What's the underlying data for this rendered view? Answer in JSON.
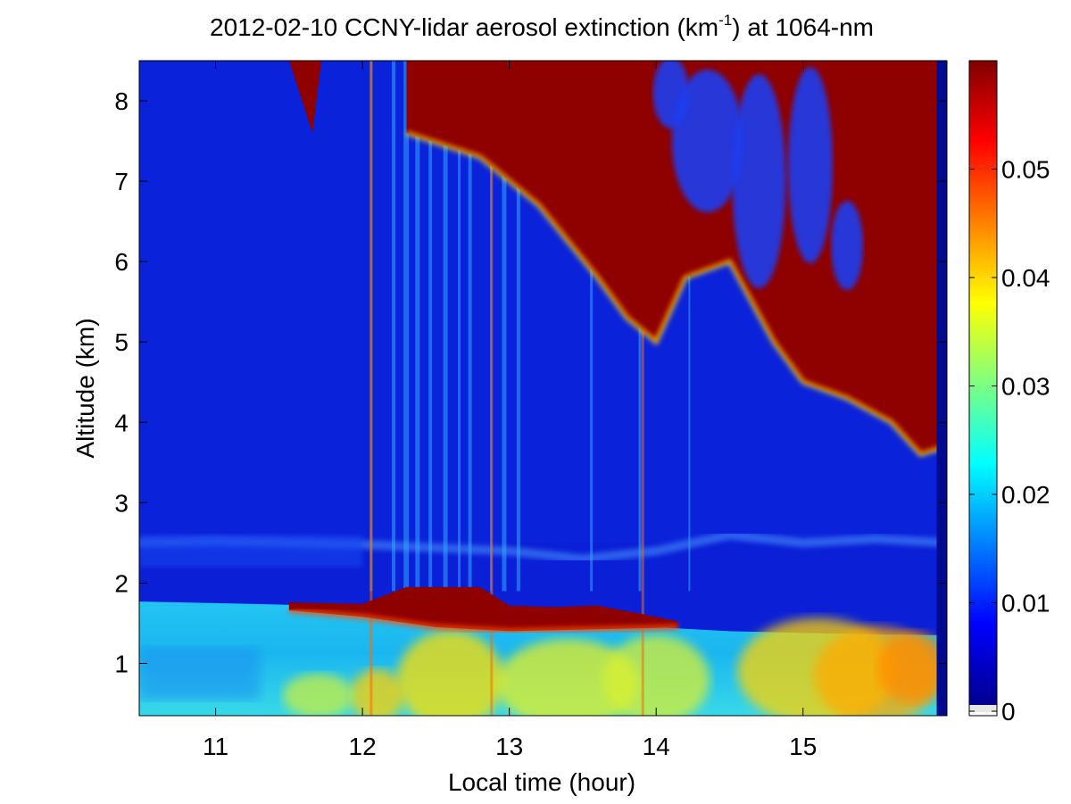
{
  "chart_data": {
    "type": "heatmap",
    "title_main": "2012-02-10 CCNY-lidar aerosol extinction (km",
    "title_sup": "-1",
    "title_tail": ") at 1064-nm",
    "xlabel": "Local time (hour)",
    "ylabel": "Altitude (km)",
    "xlim": [
      10.48,
      15.98
    ],
    "ylim": [
      0.35,
      8.5
    ],
    "x_ticks": [
      11,
      12,
      13,
      14,
      15
    ],
    "y_ticks": [
      1,
      2,
      3,
      4,
      5,
      6,
      7,
      8
    ],
    "colorbar": {
      "colormap": "jet",
      "clim": [
        0,
        0.06
      ],
      "ticks": [
        0,
        0.01,
        0.02,
        0.03,
        0.04,
        0.05
      ],
      "tick_labels": [
        "0",
        "0.01",
        "0.02",
        "0.03",
        "0.04",
        "0.05"
      ]
    },
    "features": {
      "boundary_layer_top_km": [
        [
          10.48,
          1.77
        ],
        [
          11.0,
          1.75
        ],
        [
          11.5,
          1.73
        ],
        [
          12.0,
          1.68
        ],
        [
          12.5,
          1.65
        ],
        [
          13.0,
          1.58
        ],
        [
          13.5,
          1.53
        ],
        [
          14.0,
          1.45
        ],
        [
          14.5,
          1.4
        ],
        [
          15.0,
          1.38
        ],
        [
          15.5,
          1.36
        ],
        [
          15.98,
          1.35
        ]
      ],
      "aerosol_layer_top_km": [
        [
          11.5,
          1.76
        ],
        [
          12.0,
          1.74
        ],
        [
          12.3,
          1.95
        ],
        [
          12.8,
          1.95
        ],
        [
          13.0,
          1.72
        ],
        [
          13.3,
          1.7
        ],
        [
          13.6,
          1.72
        ],
        [
          14.0,
          1.58
        ],
        [
          14.15,
          1.52
        ]
      ],
      "aerosol_layer_bottom_km": [
        [
          11.5,
          1.66
        ],
        [
          12.0,
          1.58
        ],
        [
          12.5,
          1.45
        ],
        [
          13.0,
          1.4
        ],
        [
          13.5,
          1.42
        ],
        [
          14.0,
          1.44
        ],
        [
          14.15,
          1.45
        ]
      ],
      "elevated_layer_km": [
        [
          10.48,
          2.5
        ],
        [
          11.0,
          2.52
        ],
        [
          12.0,
          2.48
        ],
        [
          13.0,
          2.4
        ],
        [
          13.5,
          2.3
        ],
        [
          14.0,
          2.4
        ],
        [
          14.5,
          2.6
        ],
        [
          15.0,
          2.5
        ],
        [
          15.5,
          2.55
        ],
        [
          15.98,
          2.5
        ]
      ],
      "cloud_base_km": [
        [
          12.3,
          7.6
        ],
        [
          12.8,
          7.3
        ],
        [
          13.2,
          6.7
        ],
        [
          13.6,
          5.8
        ],
        [
          13.8,
          5.3
        ],
        [
          14.0,
          5.0
        ],
        [
          14.2,
          5.8
        ],
        [
          14.5,
          6.0
        ],
        [
          14.8,
          5.0
        ],
        [
          15.0,
          4.5
        ],
        [
          15.3,
          4.3
        ],
        [
          15.6,
          4.0
        ],
        [
          15.8,
          3.6
        ],
        [
          15.98,
          3.7
        ]
      ],
      "small_cloud": {
        "x": [
          11.5,
          11.72
        ],
        "base_km": 7.6,
        "top_km": 8.5
      }
    }
  }
}
